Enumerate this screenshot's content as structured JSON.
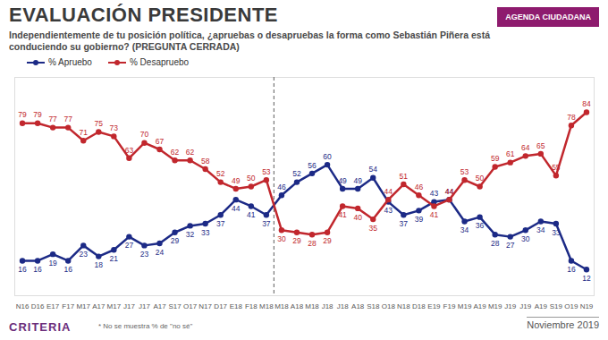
{
  "chart_data": {
    "type": "line",
    "title": "EVALUACIÓN PRESIDENTE",
    "subtitle": "Independientemente de tu posición política, ¿apruebas o desapruebas la forma como Sebastián Piñera está conduciendo su gobierno? (PREGUNTA CERRADA)",
    "badge": "AGENDA CIUDADANA",
    "source": "CRITERIA",
    "footnote": "* No se muestra % de \"no sé\"",
    "date_label": "Noviembre 2019",
    "categories": [
      "N16",
      "D16",
      "E17",
      "F17",
      "M17",
      "A17",
      "M17",
      "J17",
      "J17",
      "A17",
      "S17",
      "O17",
      "N17",
      "D17",
      "E18",
      "F18",
      "M18",
      "M18",
      "A18",
      "M18",
      "J18",
      "J18",
      "A18",
      "S18",
      "O18",
      "N18",
      "D18",
      "E19",
      "F19",
      "M19",
      "A19",
      "M19",
      "J19",
      "J19",
      "A19",
      "S19",
      "O19",
      "N19"
    ],
    "series": [
      {
        "name": "% Apruebo",
        "color": "#1c2a86",
        "marker": "circle",
        "line_style": "solid",
        "values": [
          16,
          16,
          19,
          16,
          23,
          18,
          21,
          27,
          23,
          24,
          29,
          32,
          33,
          37,
          44,
          41,
          37,
          46,
          52,
          56,
          60,
          49,
          49,
          54,
          43,
          37,
          39,
          43,
          44,
          34,
          36,
          28,
          27,
          30,
          34,
          33,
          16,
          12
        ]
      },
      {
        "name": "% Desapruebo",
        "color": "#c1272d",
        "marker": "circle",
        "line_style": "solid",
        "values": [
          79,
          79,
          77,
          77,
          71,
          75,
          73,
          63,
          70,
          67,
          62,
          62,
          58,
          52,
          49,
          50,
          53,
          30,
          29,
          28,
          29,
          41,
          40,
          35,
          44,
          51,
          46,
          41,
          44,
          53,
          50,
          59,
          61,
          64,
          65,
          55,
          78,
          84
        ]
      }
    ],
    "periods": [
      {
        "start": 0,
        "end": 16
      },
      {
        "start": 17,
        "end": 37
      }
    ],
    "ylim": [
      0,
      100
    ],
    "yticks": [],
    "grid": false,
    "legend": "top-left",
    "data_labels": true,
    "tick_labels": "x"
  }
}
